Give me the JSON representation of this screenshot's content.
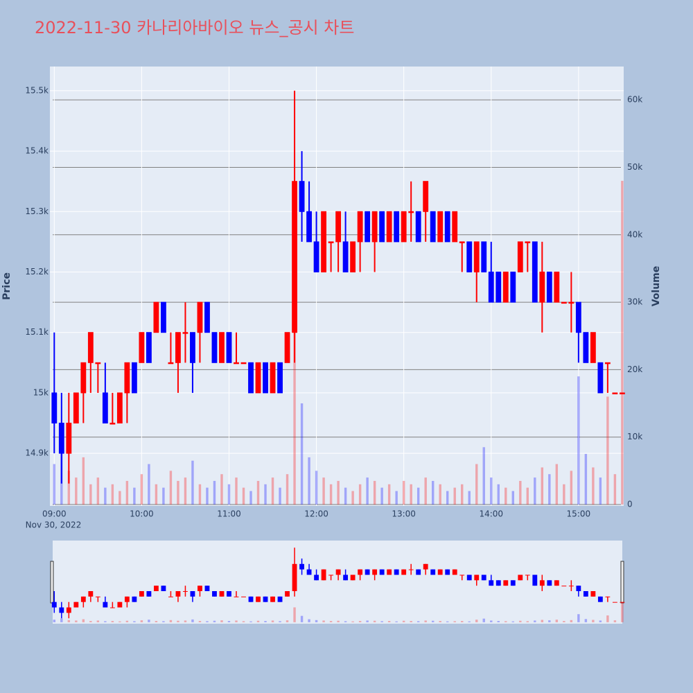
{
  "chart_data": {
    "type": "candlestick",
    "title": "2022-11-30 카나리아바이오 뉴스_공시 차트",
    "ylabel": "Price",
    "y2label": "Volume",
    "xaxis_date": "Nov 30, 2022",
    "increasing_color": "#ff0000",
    "decreasing_color": "#0000ff",
    "volume_opacity": 0.3,
    "grid": true,
    "range_slider": true,
    "xlim": [
      "2022-11-30 08:57",
      "2022-11-30 15:31"
    ],
    "xticks": [
      {
        "value": "2022-11-30 09:00",
        "label": "09:00"
      },
      {
        "value": "2022-11-30 10:00",
        "label": "10:00"
      },
      {
        "value": "2022-11-30 11:00",
        "label": "11:00"
      },
      {
        "value": "2022-11-30 12:00",
        "label": "12:00"
      },
      {
        "value": "2022-11-30 13:00",
        "label": "13:00"
      },
      {
        "value": "2022-11-30 14:00",
        "label": "14:00"
      },
      {
        "value": "2022-11-30 15:00",
        "label": "15:00"
      }
    ],
    "ylim": [
      14813,
      15540
    ],
    "yticks": [
      {
        "value": 14900,
        "label": "14.9k"
      },
      {
        "value": 15000,
        "label": "15k"
      },
      {
        "value": 15100,
        "label": "15.1k"
      },
      {
        "value": 15200,
        "label": "15.2k"
      },
      {
        "value": 15300,
        "label": "15.3k"
      },
      {
        "value": 15400,
        "label": "15.4k"
      },
      {
        "value": 15500,
        "label": "15.5k"
      }
    ],
    "y2lim": [
      -205,
      64950
    ],
    "y2ticks": [
      0,
      {
        "value": 10000,
        "label": "10k"
      },
      {
        "value": 20000,
        "label": "20k"
      },
      {
        "value": 30000,
        "label": "30k"
      },
      {
        "value": 40000,
        "label": "40k"
      },
      {
        "value": 50000,
        "label": "50k"
      },
      {
        "value": 60000,
        "label": "60k"
      }
    ],
    "x": [
      "2022-11-30 09:00",
      "2022-11-30 09:05",
      "2022-11-30 09:10",
      "2022-11-30 09:15",
      "2022-11-30 09:20",
      "2022-11-30 09:25",
      "2022-11-30 09:30",
      "2022-11-30 09:35",
      "2022-11-30 09:40",
      "2022-11-30 09:45",
      "2022-11-30 09:50",
      "2022-11-30 09:55",
      "2022-11-30 10:00",
      "2022-11-30 10:05",
      "2022-11-30 10:10",
      "2022-11-30 10:15",
      "2022-11-30 10:20",
      "2022-11-30 10:25",
      "2022-11-30 10:30",
      "2022-11-30 10:35",
      "2022-11-30 10:40",
      "2022-11-30 10:45",
      "2022-11-30 10:50",
      "2022-11-30 10:55",
      "2022-11-30 11:00",
      "2022-11-30 11:05",
      "2022-11-30 11:10",
      "2022-11-30 11:15",
      "2022-11-30 11:20",
      "2022-11-30 11:25",
      "2022-11-30 11:30",
      "2022-11-30 11:35",
      "2022-11-30 11:40",
      "2022-11-30 11:45",
      "2022-11-30 11:50",
      "2022-11-30 11:55",
      "2022-11-30 12:00",
      "2022-11-30 12:05",
      "2022-11-30 12:10",
      "2022-11-30 12:15",
      "2022-11-30 12:20",
      "2022-11-30 12:25",
      "2022-11-30 12:30",
      "2022-11-30 12:35",
      "2022-11-30 12:40",
      "2022-11-30 12:45",
      "2022-11-30 12:50",
      "2022-11-30 12:55",
      "2022-11-30 13:00",
      "2022-11-30 13:05",
      "2022-11-30 13:10",
      "2022-11-30 13:15",
      "2022-11-30 13:20",
      "2022-11-30 13:25",
      "2022-11-30 13:30",
      "2022-11-30 13:35",
      "2022-11-30 13:40",
      "2022-11-30 13:45",
      "2022-11-30 13:50",
      "2022-11-30 13:55",
      "2022-11-30 14:00",
      "2022-11-30 14:05",
      "2022-11-30 14:10",
      "2022-11-30 14:15",
      "2022-11-30 14:20",
      "2022-11-30 14:25",
      "2022-11-30 14:30",
      "2022-11-30 14:35",
      "2022-11-30 14:40",
      "2022-11-30 14:45",
      "2022-11-30 14:50",
      "2022-11-30 14:55",
      "2022-11-30 15:00",
      "2022-11-30 15:05",
      "2022-11-30 15:10",
      "2022-11-30 15:15",
      "2022-11-30 15:20",
      "2022-11-30 15:25",
      "2022-11-30 15:30"
    ],
    "open": [
      15000,
      14950,
      14900,
      14950,
      15000,
      15050,
      15050,
      15000,
      14950,
      14950,
      15000,
      15050,
      15050,
      15100,
      15100,
      15150,
      15050,
      15050,
      15100,
      15100,
      15100,
      15150,
      15100,
      15050,
      15100,
      15050,
      15050,
      15050,
      15000,
      15050,
      15000,
      15050,
      15050,
      15100,
      15350,
      15300,
      15250,
      15200,
      15250,
      15250,
      15250,
      15200,
      15250,
      15300,
      15250,
      15300,
      15250,
      15300,
      15250,
      15300,
      15300,
      15300,
      15300,
      15250,
      15300,
      15250,
      15250,
      15250,
      15200,
      15250,
      15200,
      15200,
      15150,
      15200,
      15200,
      15250,
      15250,
      15150,
      15200,
      15150,
      15150,
      15150,
      15150,
      15100,
      15050,
      15050,
      15050,
      15000,
      15000
    ],
    "high": [
      15100,
      15000,
      15000,
      15000,
      15050,
      15100,
      15050,
      15050,
      15000,
      15000,
      15050,
      15050,
      15100,
      15100,
      15150,
      15150,
      15100,
      15100,
      15150,
      15100,
      15150,
      15150,
      15100,
      15100,
      15100,
      15100,
      15050,
      15050,
      15050,
      15050,
      15050,
      15050,
      15100,
      15500,
      15400,
      15350,
      15300,
      15300,
      15250,
      15300,
      15300,
      15250,
      15300,
      15300,
      15300,
      15300,
      15300,
      15300,
      15300,
      15350,
      15300,
      15350,
      15300,
      15300,
      15300,
      15300,
      15250,
      15250,
      15250,
      15250,
      15250,
      15200,
      15200,
      15200,
      15250,
      15250,
      15250,
      15250,
      15200,
      15200,
      15150,
      15200,
      15150,
      15100,
      15100,
      15050,
      15050,
      15000,
      15000
    ],
    "low": [
      14900,
      14850,
      14850,
      14950,
      14950,
      15000,
      15000,
      14950,
      14950,
      14950,
      14950,
      15000,
      15050,
      15050,
      15100,
      15100,
      15050,
      15000,
      15050,
      15000,
      15050,
      15100,
      15050,
      15050,
      15050,
      15050,
      15050,
      15000,
      15000,
      15000,
      15000,
      15000,
      15050,
      15050,
      15250,
      15250,
      15200,
      15200,
      15200,
      15200,
      15200,
      15200,
      15200,
      15250,
      15200,
      15250,
      15250,
      15250,
      15250,
      15250,
      15250,
      15250,
      15250,
      15250,
      15250,
      15250,
      15200,
      15200,
      15150,
      15200,
      15150,
      15150,
      15150,
      15150,
      15200,
      15200,
      15150,
      15100,
      15150,
      15150,
      15150,
      15100,
      15050,
      15050,
      15050,
      15000,
      15000,
      15000,
      15000
    ],
    "close": [
      14950,
      14900,
      14950,
      15000,
      15050,
      15100,
      15050,
      14950,
      14950,
      15000,
      15050,
      15000,
      15100,
      15050,
      15150,
      15100,
      15050,
      15100,
      15100,
      15050,
      15150,
      15100,
      15050,
      15100,
      15050,
      15050,
      15050,
      15000,
      15050,
      15000,
      15050,
      15000,
      15100,
      15350,
      15300,
      15250,
      15200,
      15300,
      15250,
      15300,
      15200,
      15250,
      15300,
      15250,
      15300,
      15250,
      15300,
      15250,
      15300,
      15300,
      15250,
      15350,
      15250,
      15300,
      15250,
      15300,
      15250,
      15200,
      15250,
      15200,
      15150,
      15150,
      15200,
      15150,
      15250,
      15250,
      15150,
      15200,
      15150,
      15200,
      15150,
      15150,
      15100,
      15050,
      15100,
      15000,
      15050,
      15000,
      15000
    ],
    "volume": [
      6000,
      9000,
      5000,
      4000,
      7000,
      3000,
      4000,
      2500,
      3000,
      2000,
      3500,
      2500,
      4500,
      6000,
      3000,
      2500,
      5000,
      3500,
      4000,
      6500,
      3000,
      2500,
      3500,
      4500,
      3000,
      4000,
      2500,
      2000,
      3500,
      3000,
      4000,
      2500,
      4500,
      35000,
      15000,
      7000,
      5000,
      4000,
      3000,
      3500,
      2500,
      2000,
      3000,
      4000,
      3500,
      2500,
      3000,
      2000,
      3500,
      3000,
      2500,
      4000,
      3500,
      3000,
      2000,
      2500,
      3000,
      2000,
      6000,
      8500,
      4000,
      3000,
      2500,
      2000,
      3500,
      2500,
      4000,
      5500,
      4500,
      6000,
      3000,
      5000,
      19000,
      7500,
      5500,
      4000,
      16000,
      4500,
      48000
    ]
  }
}
